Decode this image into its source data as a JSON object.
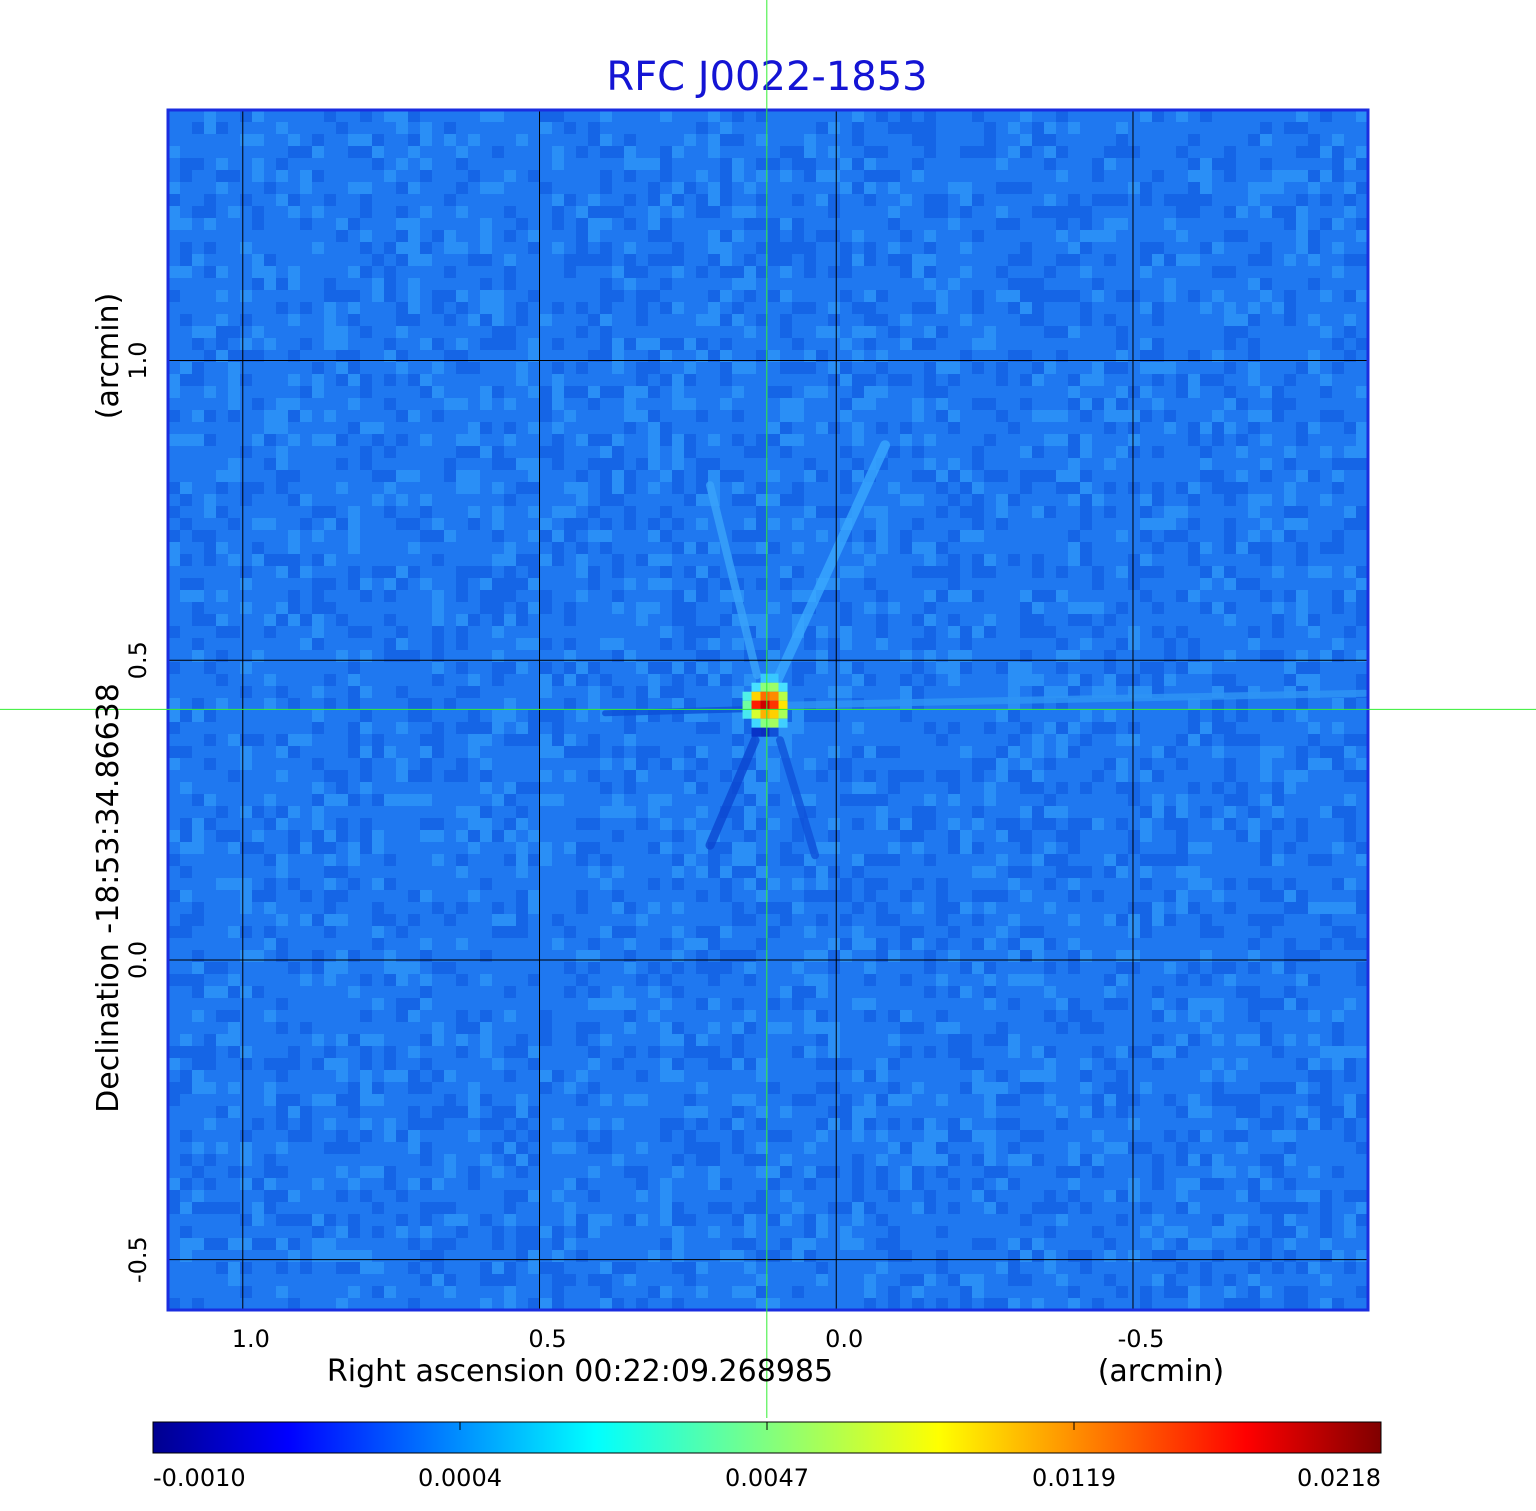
{
  "chart_data": {
    "type": "heatmap",
    "title": "RFC J0022-1853",
    "xlabel": "Right ascension  00:22:09.268985",
    "xunit": "(arcmin)",
    "ylabel": "Declination  -18:53:34.86638",
    "yunit": "(arcmin)",
    "x_range": [
      1.126,
      -0.896
    ],
    "y_range": [
      -0.584,
      1.418
    ],
    "x_ticks": [
      {
        "value": 1.0,
        "label": "1.0"
      },
      {
        "value": 0.5,
        "label": "0.5"
      },
      {
        "value": 0.0,
        "label": "0.0"
      },
      {
        "value": -0.5,
        "label": "-0.5"
      }
    ],
    "y_ticks": [
      {
        "value": 1.0,
        "label": "1.0"
      },
      {
        "value": 0.5,
        "label": "0.5"
      },
      {
        "value": 0.0,
        "label": "0.0"
      },
      {
        "value": -0.5,
        "label": "-0.5"
      }
    ],
    "grid": true,
    "crosshair": {
      "x": 0.117,
      "y": 0.418
    },
    "source_peak": {
      "x": 0.12,
      "y": 0.425,
      "value": 0.0218
    },
    "colormap": "jet",
    "colorbar": {
      "min": -0.001,
      "max": 0.0218,
      "tick_labels": [
        "-0.0010",
        "0.0004",
        "0.0047",
        "0.0119",
        "0.0218"
      ]
    },
    "colors": {
      "title": "#1414d4",
      "frame": "#1a2ee0",
      "grid": "#000000",
      "crosshair": "#33ee33",
      "background_noise": "#1f78f0"
    }
  }
}
